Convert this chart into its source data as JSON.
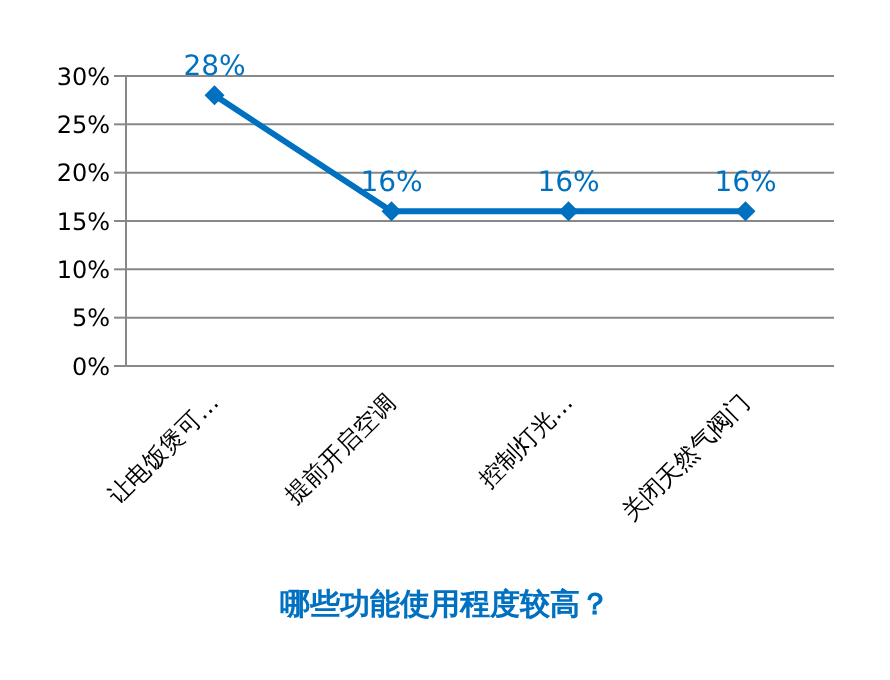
{
  "chart_data": {
    "type": "line",
    "title": "哪些功能使用程度较高？",
    "categories": [
      "让电饭煲可…",
      "提前开启空调",
      "控制灯光…",
      "关闭天然气阀门"
    ],
    "values": [
      28,
      16,
      16,
      16
    ],
    "color": "#0070c0",
    "value_labels": [
      "28%",
      "16%",
      "16%",
      "16%"
    ],
    "ylim": [
      0,
      30
    ],
    "yticks": [
      {
        "value": 0,
        "label": "0%"
      },
      {
        "value": 5,
        "label": "5%"
      },
      {
        "value": 10,
        "label": "10%"
      },
      {
        "value": 15,
        "label": "15%"
      },
      {
        "value": 20,
        "label": "20%"
      },
      {
        "value": 25,
        "label": "25%"
      },
      {
        "value": 30,
        "label": "30%"
      }
    ],
    "grid": "y",
    "marker": "diamond"
  }
}
